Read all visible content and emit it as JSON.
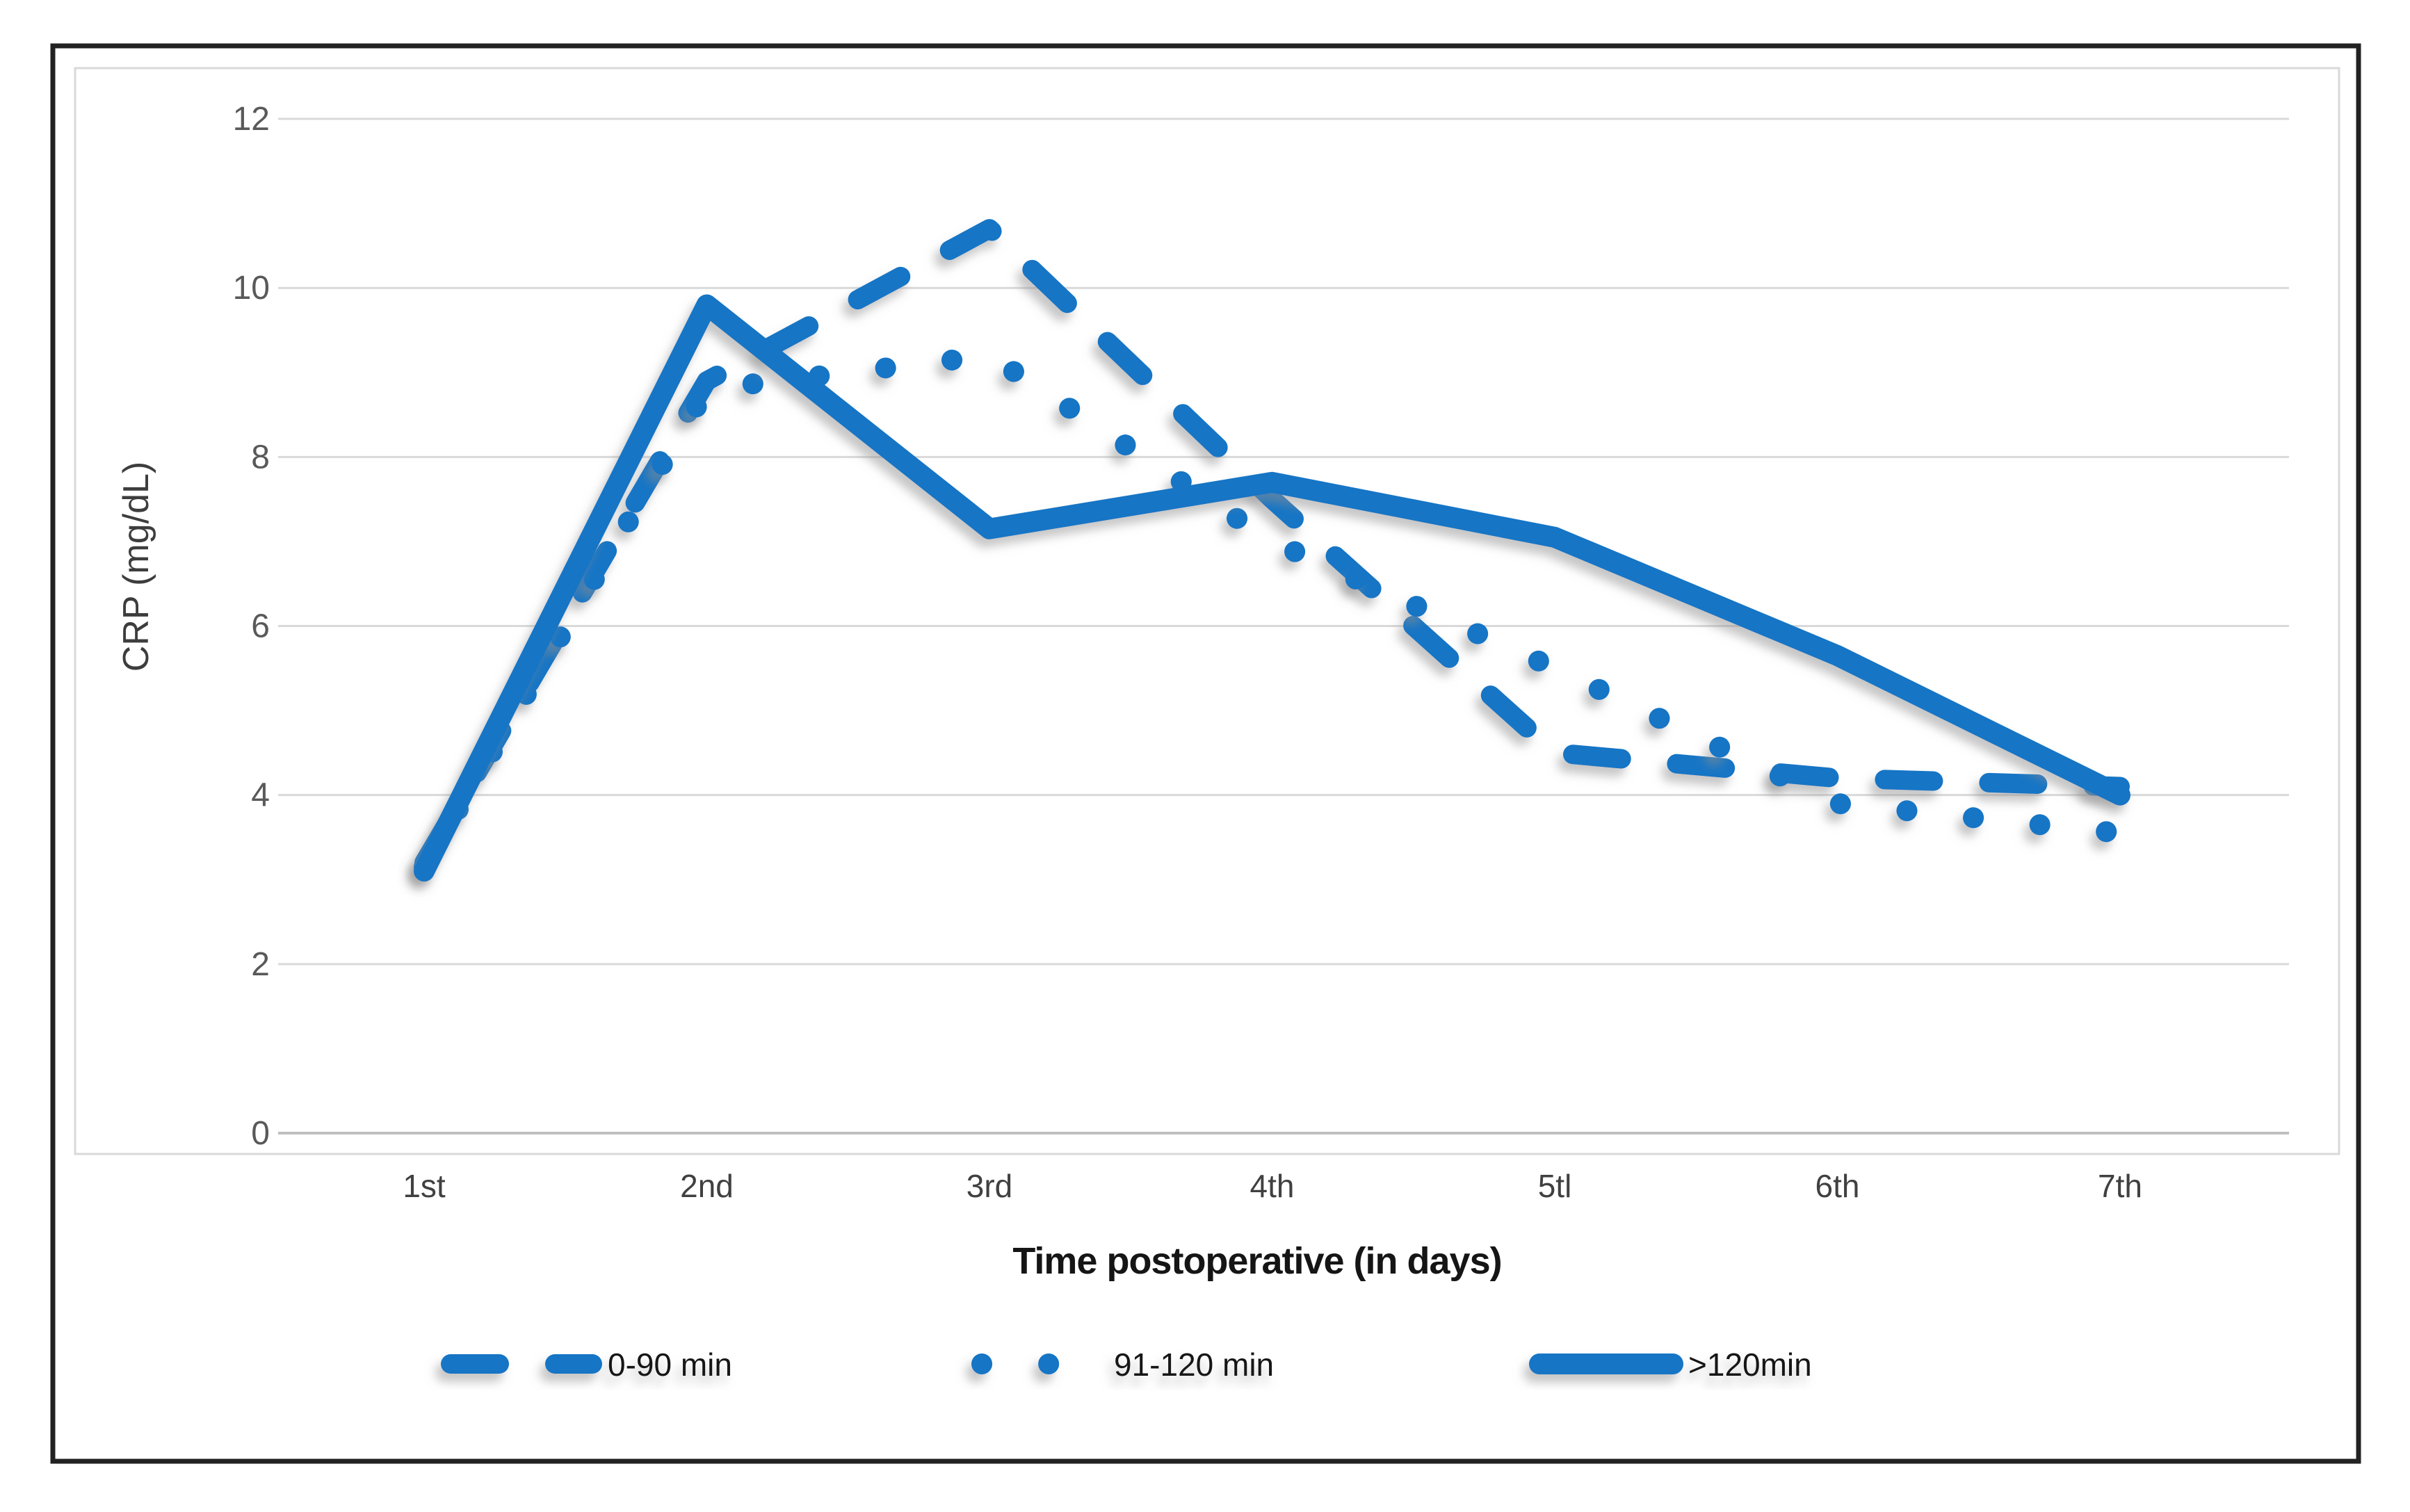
{
  "chart_data": {
    "type": "line",
    "title": "",
    "xlabel": "Time postoperative (in days)",
    "ylabel": "CRP (mg/dL)",
    "categories": [
      "1st",
      "2nd",
      "3rd",
      "4th",
      "5tl",
      "6th",
      "7th"
    ],
    "yticks": [
      0,
      2,
      4,
      6,
      8,
      10,
      12
    ],
    "ylim": [
      0,
      12
    ],
    "grid": true,
    "legend_position": "bottom",
    "line_color": "#1274C5",
    "series": [
      {
        "name": "0-90 min",
        "style": "dashed",
        "values": [
          3.2,
          8.9,
          10.7,
          7.5,
          4.5,
          4.2,
          4.1
        ]
      },
      {
        "name": "91-120 min",
        "style": "dotted",
        "values": [
          3.15,
          8.8,
          9.2,
          7.0,
          5.5,
          3.9,
          3.55
        ]
      },
      {
        "name": ">120min",
        "style": "solid",
        "values": [
          3.1,
          9.8,
          7.15,
          7.7,
          7.05,
          5.65,
          4.0
        ]
      }
    ]
  }
}
